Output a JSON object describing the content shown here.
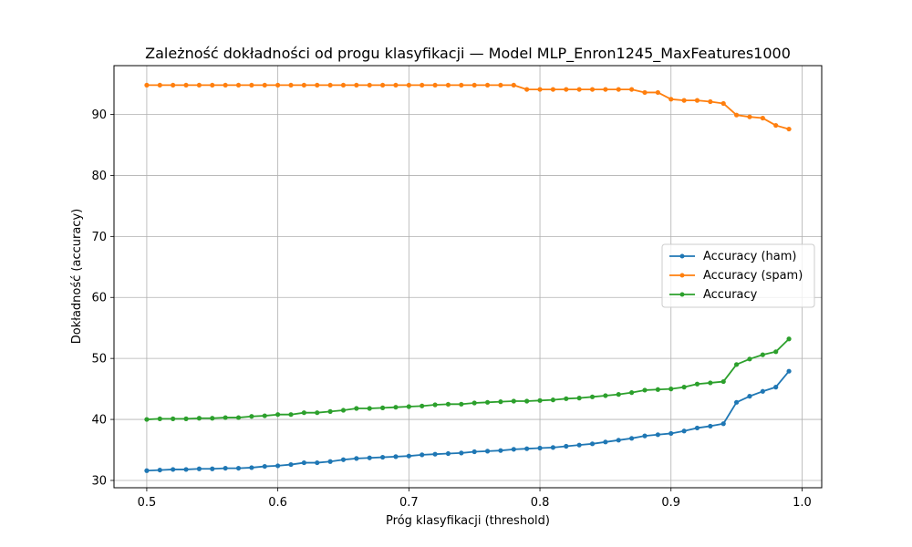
{
  "chart_data": {
    "type": "line",
    "title": "Zależność dokładności od progu klasyfikacji — Model MLP_Enron1245_MaxFeatures1000",
    "xlabel": "Próg klasyfikacji (threshold)",
    "ylabel": "Dokładność (accuracy)",
    "xlim": [
      0.475,
      1.015
    ],
    "ylim": [
      28.8,
      98.0
    ],
    "xticks": [
      "0.5",
      "0.6",
      "0.7",
      "0.8",
      "0.9",
      "1.0"
    ],
    "yticks": [
      "30",
      "40",
      "50",
      "60",
      "70",
      "80",
      "90"
    ],
    "grid": true,
    "legend_position": "center-right",
    "x": [
      0.5,
      0.51,
      0.52,
      0.53,
      0.54,
      0.55,
      0.56,
      0.57,
      0.58,
      0.59,
      0.6,
      0.61,
      0.62,
      0.63,
      0.64,
      0.65,
      0.66,
      0.67,
      0.68,
      0.69,
      0.7,
      0.71,
      0.72,
      0.73,
      0.74,
      0.75,
      0.76,
      0.77,
      0.78,
      0.79,
      0.8,
      0.81,
      0.82,
      0.83,
      0.84,
      0.85,
      0.86,
      0.87,
      0.88,
      0.89,
      0.9,
      0.91,
      0.92,
      0.93,
      0.94,
      0.95,
      0.96,
      0.97,
      0.98,
      0.99
    ],
    "series": [
      {
        "name": "Accuracy (ham)",
        "color": "#1f77b4",
        "values": [
          31.6,
          31.7,
          31.8,
          31.8,
          31.9,
          31.9,
          32.0,
          32.0,
          32.1,
          32.3,
          32.4,
          32.6,
          32.9,
          32.9,
          33.1,
          33.4,
          33.6,
          33.7,
          33.8,
          33.9,
          34.0,
          34.2,
          34.3,
          34.4,
          34.5,
          34.7,
          34.8,
          34.9,
          35.1,
          35.2,
          35.3,
          35.4,
          35.6,
          35.8,
          36.0,
          36.3,
          36.6,
          36.9,
          37.3,
          37.5,
          37.7,
          38.1,
          38.6,
          38.9,
          39.3,
          42.8,
          43.8,
          44.6,
          45.3,
          47.9
        ]
      },
      {
        "name": "Accuracy (spam)",
        "color": "#ff7f0e",
        "values": [
          94.8,
          94.8,
          94.8,
          94.8,
          94.8,
          94.8,
          94.8,
          94.8,
          94.8,
          94.8,
          94.8,
          94.8,
          94.8,
          94.8,
          94.8,
          94.8,
          94.8,
          94.8,
          94.8,
          94.8,
          94.8,
          94.8,
          94.8,
          94.8,
          94.8,
          94.8,
          94.8,
          94.8,
          94.8,
          94.1,
          94.1,
          94.1,
          94.1,
          94.1,
          94.1,
          94.1,
          94.1,
          94.1,
          93.6,
          93.6,
          92.5,
          92.3,
          92.3,
          92.1,
          91.8,
          89.9,
          89.6,
          89.4,
          88.2,
          87.6
        ]
      },
      {
        "name": "Accuracy",
        "color": "#2ca02c",
        "values": [
          40.0,
          40.1,
          40.1,
          40.1,
          40.2,
          40.2,
          40.3,
          40.3,
          40.5,
          40.6,
          40.8,
          40.8,
          41.1,
          41.1,
          41.3,
          41.5,
          41.8,
          41.8,
          41.9,
          42.0,
          42.1,
          42.2,
          42.4,
          42.5,
          42.5,
          42.7,
          42.8,
          42.9,
          43.0,
          43.0,
          43.1,
          43.2,
          43.4,
          43.5,
          43.7,
          43.9,
          44.1,
          44.4,
          44.8,
          44.9,
          45.0,
          45.3,
          45.8,
          46.0,
          46.2,
          49.0,
          49.9,
          50.6,
          51.1,
          53.2
        ]
      }
    ]
  }
}
